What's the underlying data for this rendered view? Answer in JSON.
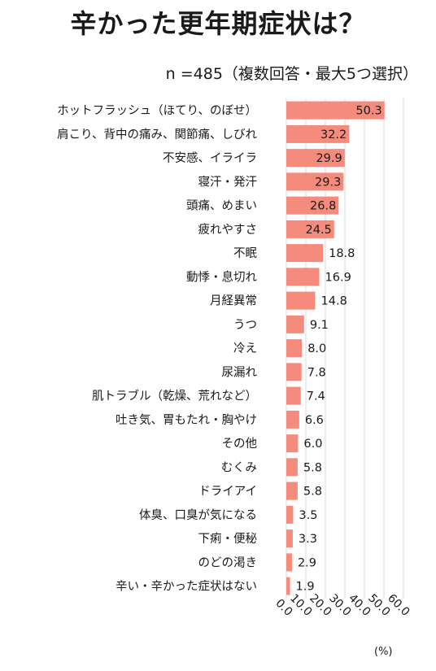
{
  "chart_data": {
    "type": "bar",
    "orientation": "horizontal",
    "title": "辛かった更年期症状は？",
    "subtitle": "n =485（複数回答・最大5つ選択）",
    "unit": "(%)",
    "categories": [
      "ホットフラッシュ（ほてり、のぼせ）",
      "肩こり、背中の痛み、関節痛、しびれ",
      "不安感、イライラ",
      "寝汗・発汗",
      "頭痛、めまい",
      "疲れやすさ",
      "不眠",
      "動悸・息切れ",
      "月経異常",
      "うつ",
      "冷え",
      "尿漏れ",
      "肌トラブル（乾燥、荒れなど）",
      "吐き気、胃もたれ・胸やけ",
      "その他",
      "むくみ",
      "ドライアイ",
      "体臭、口臭が気になる",
      "下痢・便秘",
      "のどの渇き",
      "辛い・辛かった症状はない"
    ],
    "values": [
      50.3,
      32.2,
      29.9,
      29.3,
      26.8,
      24.5,
      18.8,
      16.9,
      14.8,
      9.1,
      8.0,
      7.8,
      7.4,
      6.6,
      6.0,
      5.8,
      5.8,
      3.5,
      3.3,
      2.9,
      1.9
    ],
    "value_labels": [
      "50.3",
      "32.2",
      "29.9",
      "29.3",
      "26.8",
      "24.5",
      "18.8",
      "16.9",
      "14.8",
      "9.1",
      "8.0",
      "7.8",
      "7.4",
      "6.6",
      "6.0",
      "5.8",
      "5.8",
      "3.5",
      "3.3",
      "2.9",
      "1.9"
    ],
    "xlim": [
      0,
      60
    ],
    "xticks": [
      "0.0",
      "10.0",
      "20.0",
      "30.0",
      "40.0",
      "50.0",
      "60.0"
    ],
    "grid": true,
    "bar_color": "#f48b7c",
    "grid_color": "#d9d9d9"
  }
}
